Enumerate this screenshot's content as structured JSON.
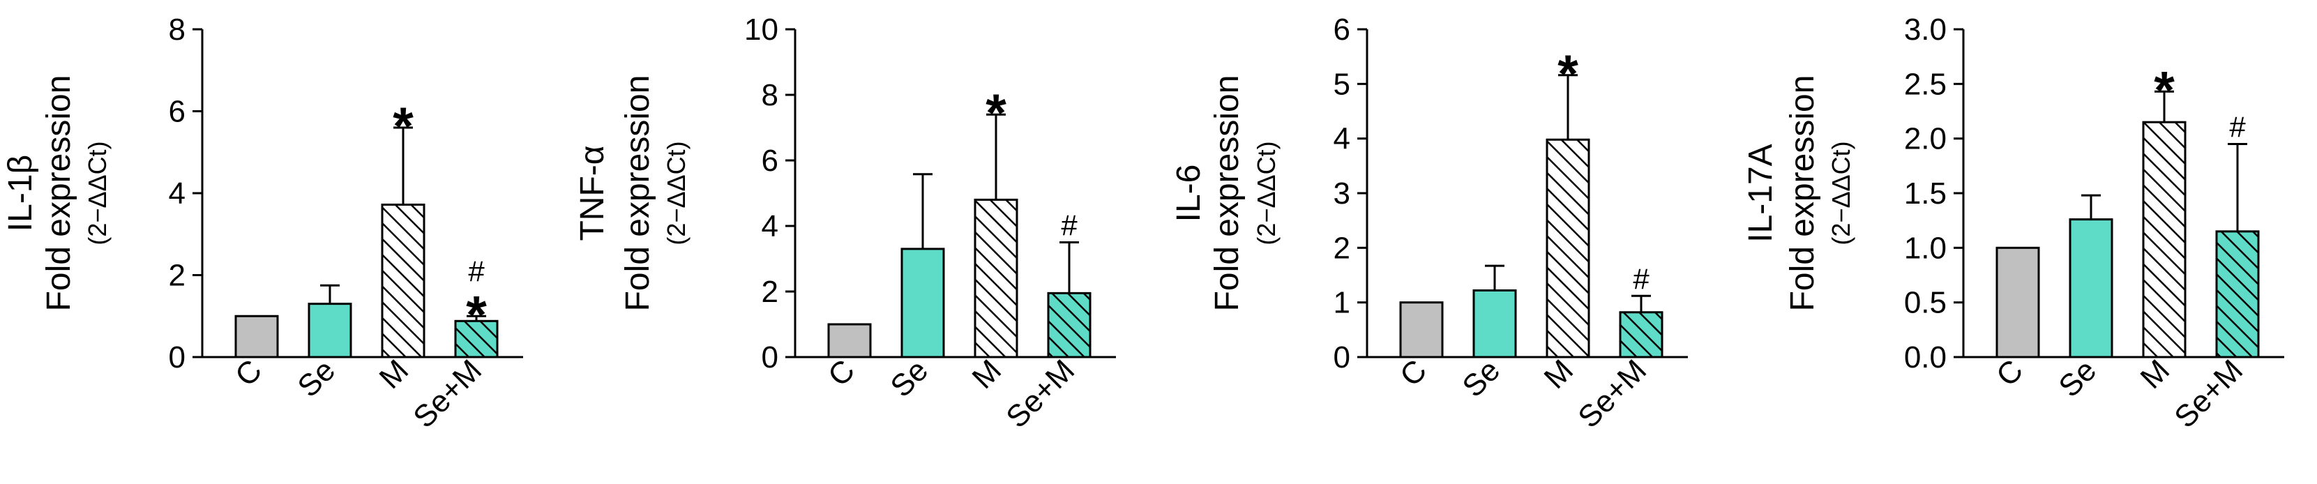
{
  "chart_data": [
    {
      "type": "bar",
      "ylabel_line1": "IL-1β",
      "ylabel_line2": "Fold expression",
      "ylabel_unit": "(2−ΔΔCt)",
      "categories": [
        "C",
        "Se",
        "M",
        "Se+M"
      ],
      "values": [
        1.0,
        1.3,
        3.72,
        0.88
      ],
      "errors": [
        0,
        0.45,
        1.88,
        0.12
      ],
      "significance": [
        "",
        "",
        "*",
        "#*"
      ],
      "ylim": [
        0,
        8
      ],
      "yticks": [
        "0",
        "2",
        "4",
        "6",
        "8"
      ]
    },
    {
      "type": "bar",
      "ylabel_line1": "TNF-α",
      "ylabel_line2": "Fold expression",
      "ylabel_unit": "(2−ΔΔCt)",
      "categories": [
        "C",
        "Se",
        "M",
        "Se+M"
      ],
      "values": [
        1.0,
        3.3,
        4.8,
        1.95
      ],
      "errors": [
        0,
        2.28,
        2.6,
        1.55
      ],
      "significance": [
        "",
        "",
        "*",
        "#"
      ],
      "ylim": [
        0,
        10
      ],
      "yticks": [
        "0",
        "2",
        "4",
        "6",
        "8",
        "10"
      ]
    },
    {
      "type": "bar",
      "ylabel_line1": "IL-6",
      "ylabel_line2": "Fold expression",
      "ylabel_unit": "(2−ΔΔCt)",
      "categories": [
        "C",
        "Se",
        "M",
        "Se+M"
      ],
      "values": [
        1.0,
        1.22,
        3.98,
        0.82
      ],
      "errors": [
        0,
        0.45,
        1.18,
        0.3
      ],
      "significance": [
        "",
        "",
        "*",
        "#"
      ],
      "ylim": [
        0,
        6
      ],
      "yticks": [
        "0",
        "1",
        "2",
        "3",
        "4",
        "5",
        "6"
      ]
    },
    {
      "type": "bar",
      "ylabel_line1": "IL-17A",
      "ylabel_line2": "Fold expression",
      "ylabel_unit": "(2−ΔΔCt)",
      "categories": [
        "C",
        "Se",
        "M",
        "Se+M"
      ],
      "values": [
        1.0,
        1.26,
        2.15,
        1.15
      ],
      "errors": [
        0,
        0.22,
        0.28,
        0.8
      ],
      "significance": [
        "",
        "",
        "*",
        "#"
      ],
      "ylim": [
        0,
        3.0
      ],
      "yticks": [
        "0.0",
        "0.5",
        "1.0",
        "1.5",
        "2.0",
        "2.5",
        "3.0"
      ]
    }
  ],
  "colors": {
    "control": "#c0c0c0",
    "selenium": "#5edcc7",
    "model_hatch": "#ffffff",
    "combo_fill": "#5edcc7",
    "outline": "#000000"
  },
  "bar_styles": [
    "solid-gray",
    "solid-teal",
    "hatched-white",
    "hatched-teal"
  ]
}
